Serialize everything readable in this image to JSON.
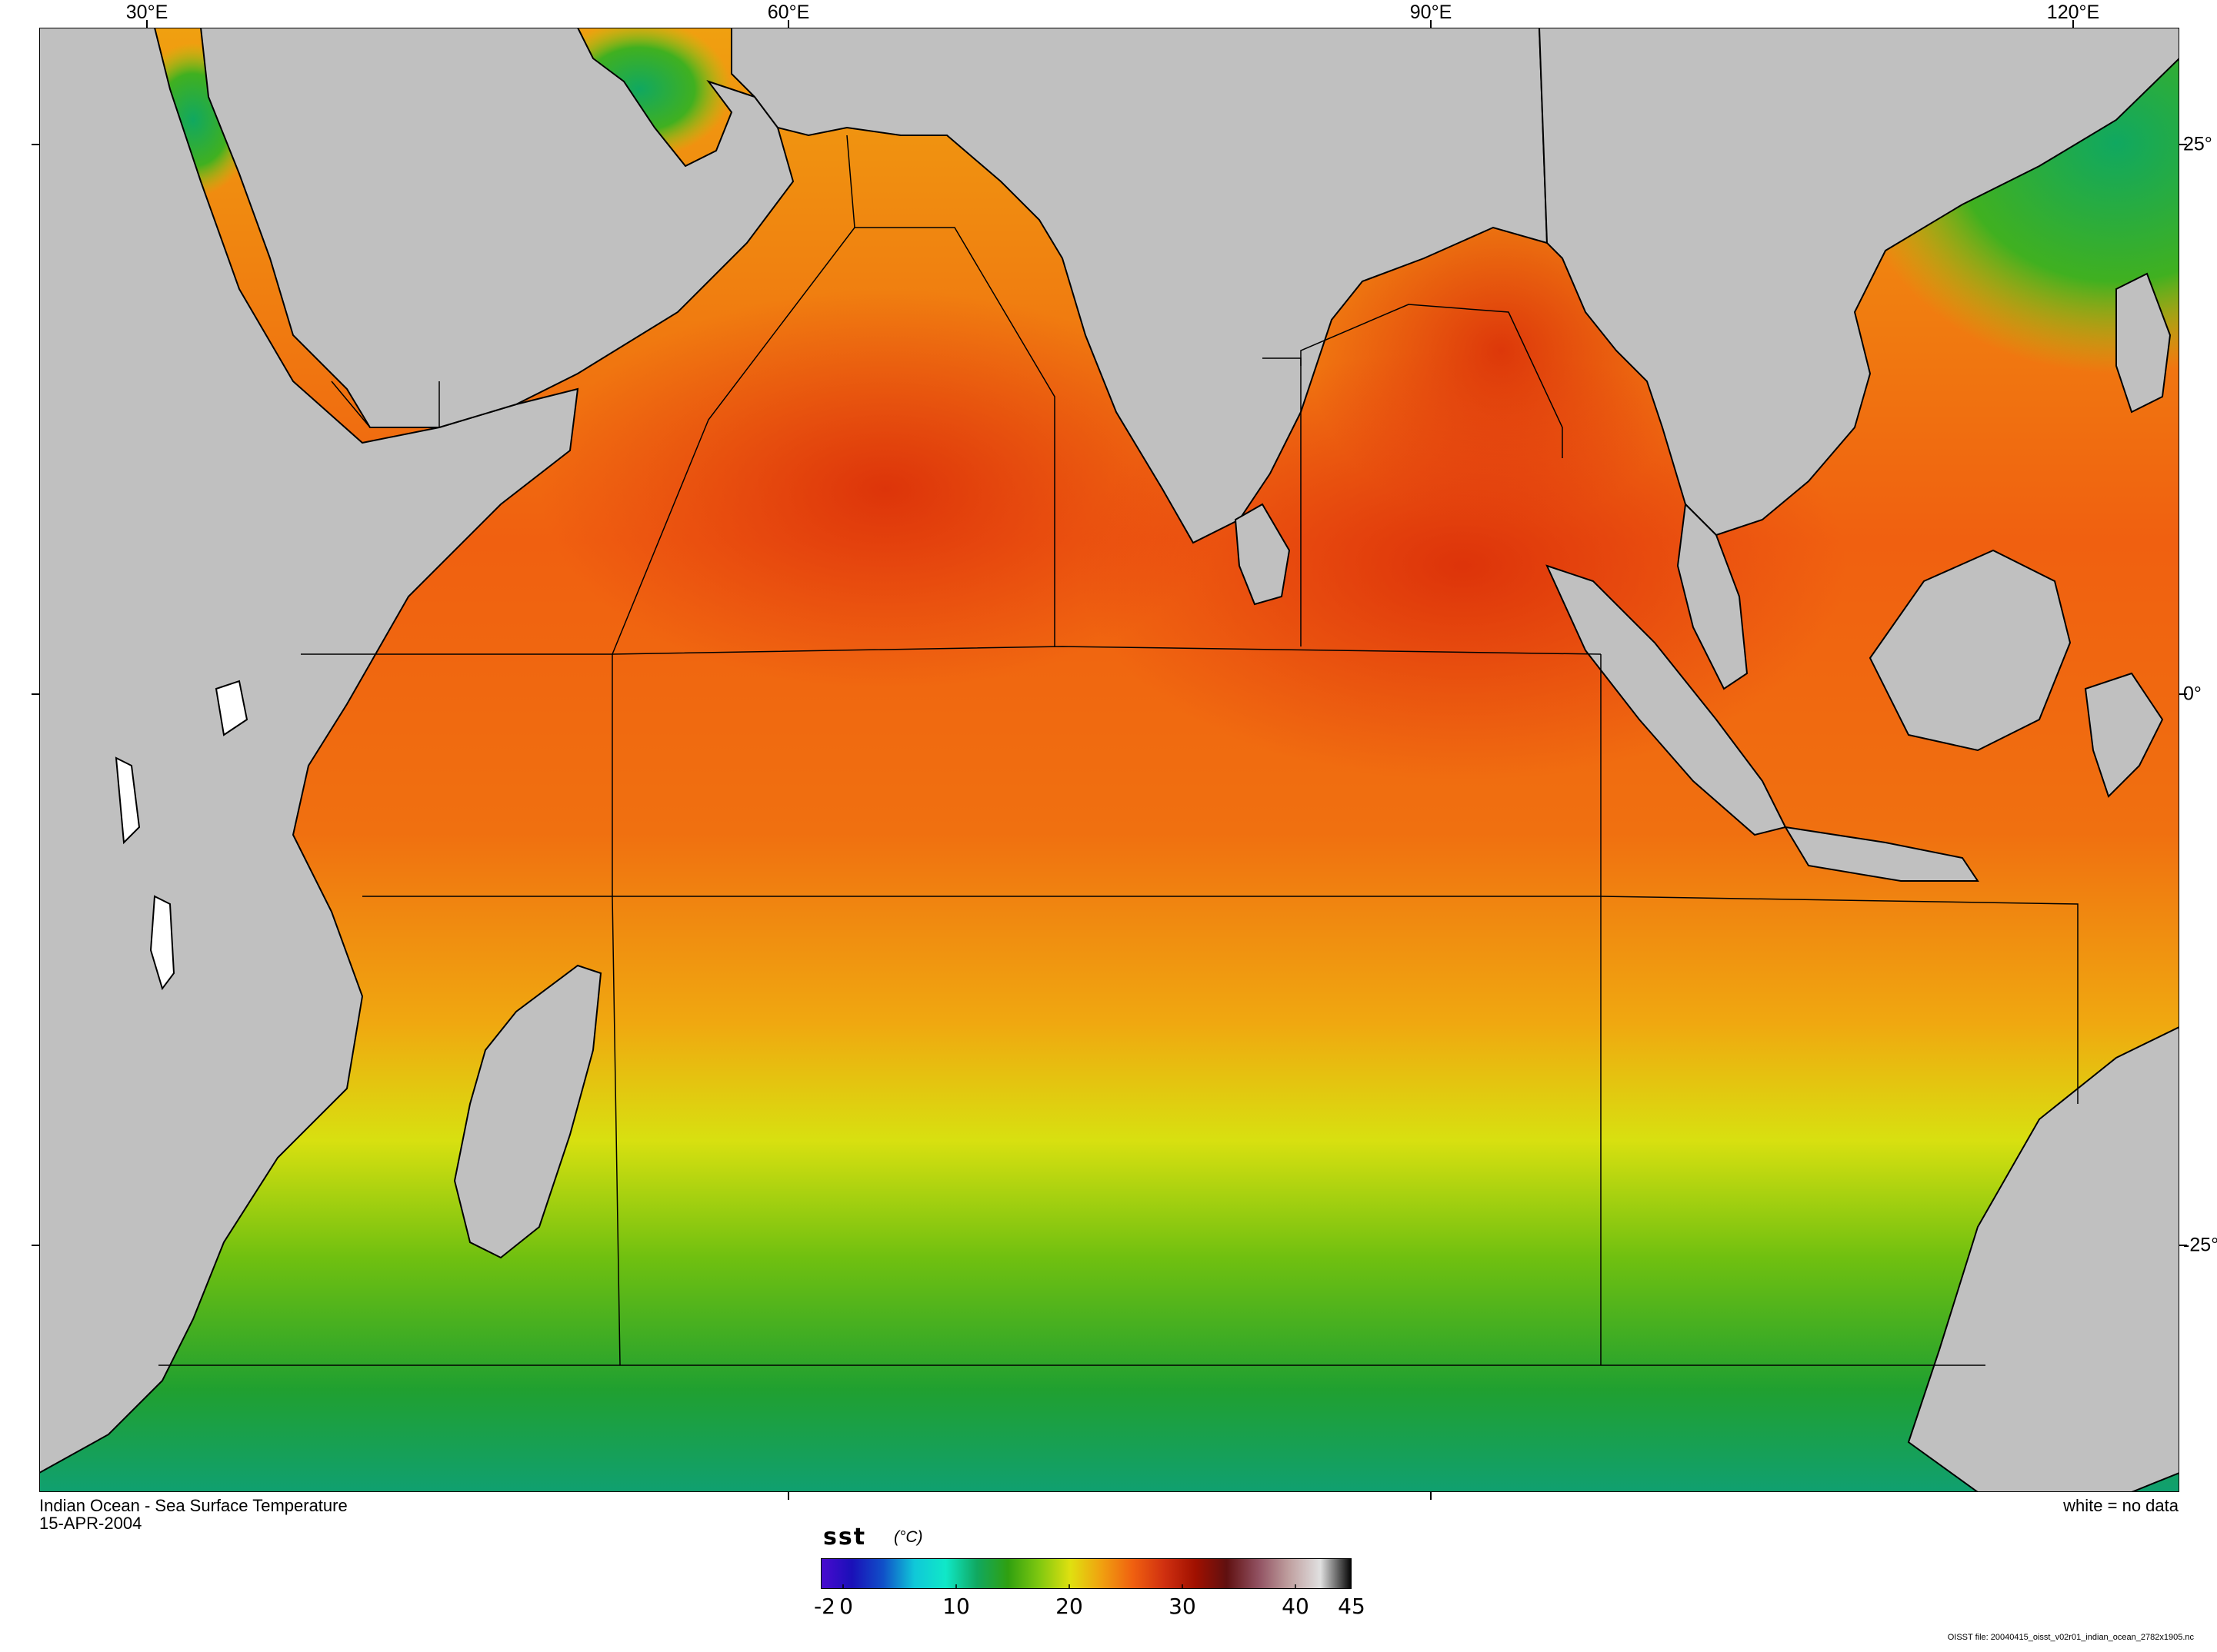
{
  "title": "Indian Ocean - Sea Surface Temperature",
  "date": "15-APR-2004",
  "no_data_note": "white = no data",
  "file_info": "OISST file: 20040415_oisst_v02r01_indian_ocean_2782x1905.nc",
  "lon_labels": [
    "30°E",
    "60°E",
    "90°E",
    "120°E"
  ],
  "lat_labels": [
    "25°",
    "0°",
    "-25°"
  ],
  "colorbar": {
    "variable": "sst",
    "unit": "(°C)",
    "ticks": [
      "-2",
      "0",
      "10",
      "20",
      "30",
      "40",
      "45"
    ],
    "range": [
      -2,
      45
    ],
    "colors": [
      "#4a0ad0",
      "#1a10b8",
      "#1050c8",
      "#10c8d8",
      "#10e8c8",
      "#10a860",
      "#30a010",
      "#80c810",
      "#e0e010",
      "#f0a010",
      "#f06010",
      "#d03010",
      "#a01000",
      "#601010",
      "#905060",
      "#c0a0a0",
      "#e0e0e0",
      "#000000"
    ]
  },
  "map": {
    "land_color": "#c0c0c0",
    "no_data_color": "#ffffff",
    "max_sst_region": "central equatorial Indian Ocean / Bay of Bengal",
    "min_sst_region": "southern Indian Ocean"
  }
}
